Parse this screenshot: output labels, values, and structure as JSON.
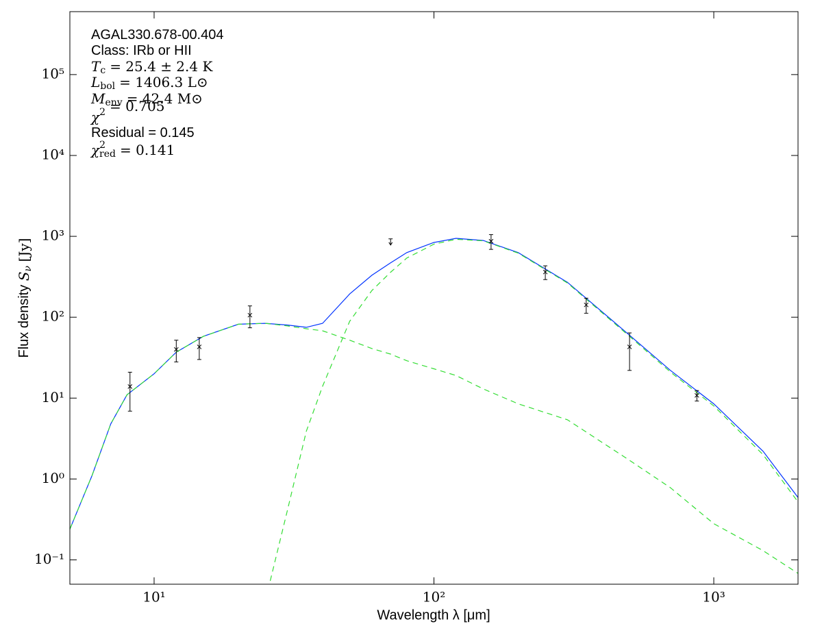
{
  "chart_data": {
    "type": "sed",
    "xlabel": "Wavelength λ [μm]",
    "ylabel": {
      "text": "Flux density",
      "symbol": "S",
      "sub": "ν",
      "unit": "[Jy]"
    },
    "annotations": [
      {
        "text": "AGAL330.678-00.404"
      },
      {
        "text": "Class: IRb or HII"
      },
      {
        "symbol": "T",
        "sub": "c",
        "rest": "= 25.4 ± 2.4 K"
      },
      {
        "symbol": "L",
        "sub": "bol",
        "rest": "= 1406.3 L⊙"
      },
      {
        "symbol": "M",
        "sub": "env",
        "rest": "= 42.4 M⊙"
      },
      {
        "symbol": "χ",
        "sup": "2",
        "rest": "= 0.705"
      },
      {
        "text": "Residual = 0.145"
      },
      {
        "symbol": "χ",
        "sup": "2",
        "sub": "red",
        "rest": "= 0.141"
      }
    ],
    "xscale": "log",
    "yscale": "log",
    "xlim": [
      5,
      2000
    ],
    "ylim": [
      0.05,
      600000
    ],
    "xticks": [
      {
        "value": 10,
        "label": "10¹"
      },
      {
        "value": 100,
        "label": "10²"
      },
      {
        "value": 1000,
        "label": "10³"
      }
    ],
    "yticks": [
      {
        "value": 0.1,
        "label": "10⁻¹"
      },
      {
        "value": 1,
        "label": "10⁰"
      },
      {
        "value": 10,
        "label": "10¹"
      },
      {
        "value": 100,
        "label": "10²"
      },
      {
        "value": 1000,
        "label": "10³"
      },
      {
        "value": 10000,
        "label": "10⁴"
      },
      {
        "value": 100000,
        "label": "10⁵"
      }
    ],
    "points": {
      "color": "#000000",
      "x": [
        8.2,
        12,
        14.5,
        22,
        160,
        250,
        350,
        500,
        870
      ],
      "values": [
        13.9,
        40,
        43,
        106,
        870,
        362,
        142,
        43,
        10.8
      ],
      "errors": [
        7,
        12,
        13,
        32,
        180,
        70,
        30,
        21,
        1.6
      ]
    },
    "upper_limits": {
      "color": "#000000",
      "x": [
        70
      ],
      "values": [
        930
      ]
    },
    "curves": [
      {
        "style": "solid",
        "color": "#0033ff",
        "x": [
          5,
          6,
          7,
          8,
          10,
          12,
          15,
          20,
          25,
          30,
          35,
          40,
          50,
          60,
          70,
          80,
          100,
          120,
          150,
          200,
          300,
          500,
          700,
          1000,
          1500,
          2000
        ],
        "values": [
          0.24,
          1.1,
          4.8,
          11,
          20,
          37,
          58,
          82,
          84,
          80,
          75,
          84,
          194,
          330,
          470,
          630,
          840,
          945,
          890,
          630,
          270,
          60,
          22,
          8.5,
          2.2,
          0.59
        ]
      },
      {
        "style": "dashed",
        "color": "#33dd33",
        "x": [
          5,
          6,
          7,
          8,
          10,
          12,
          15,
          20,
          25,
          30,
          35,
          40,
          50,
          60,
          70,
          80,
          100,
          120,
          150,
          200,
          300,
          500,
          700,
          1000,
          1500,
          2000
        ],
        "values": [
          0.24,
          1.1,
          4.8,
          11,
          20,
          37,
          58,
          82,
          84,
          78,
          72,
          68,
          52,
          41,
          35,
          29,
          23,
          19,
          13,
          8.5,
          5.4,
          1.7,
          0.78,
          0.28,
          0.13,
          0.068
        ]
      },
      {
        "style": "dashed",
        "color": "#33dd33",
        "x": [
          26,
          30,
          35,
          40,
          50,
          60,
          70,
          80,
          100,
          120,
          150,
          200,
          300,
          500,
          700,
          1000,
          1500,
          2000
        ],
        "values": [
          0.055,
          0.42,
          3.9,
          14,
          89,
          214,
          360,
          540,
          800,
          920,
          880,
          620,
          265,
          58,
          21,
          8.0,
          2.0,
          0.52
        ]
      }
    ]
  }
}
